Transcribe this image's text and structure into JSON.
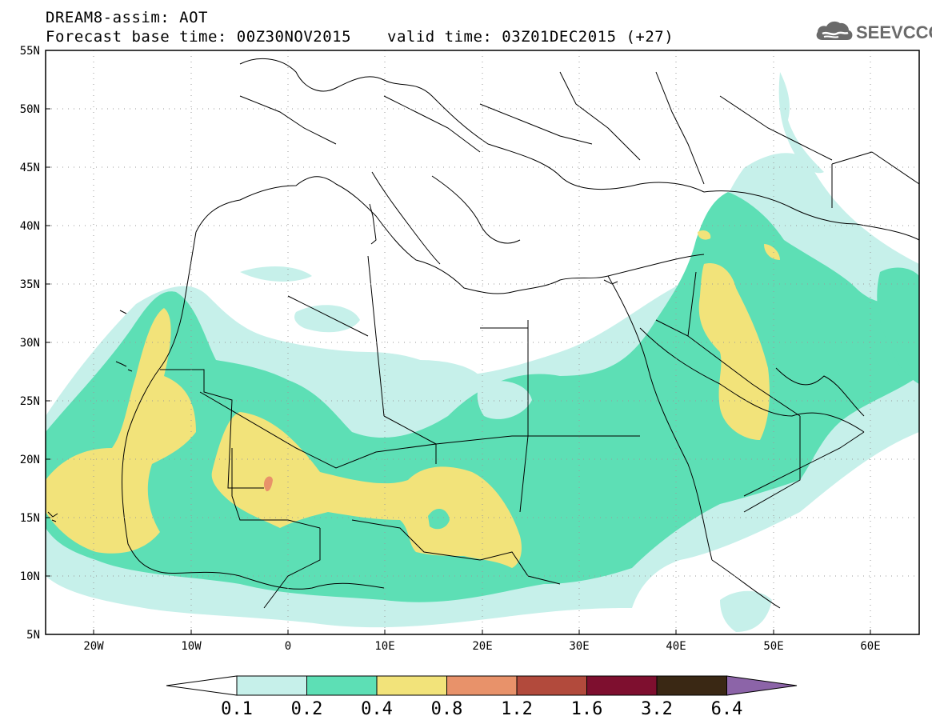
{
  "header": {
    "title_line1": "DREAM8-assim: AOT",
    "title_line2": "Forecast base time: 00Z30NOV2015",
    "valid_time": "valid time: 03Z01DEC2015 (+27)"
  },
  "logo": {
    "text": "SEEVCCC",
    "icon": "cloud-icon"
  },
  "map": {
    "lat_labels": [
      "55N",
      "50N",
      "45N",
      "40N",
      "35N",
      "30N",
      "25N",
      "20N",
      "15N",
      "10N",
      "5N"
    ],
    "lon_labels": [
      "20W",
      "10W",
      "0",
      "10E",
      "20E",
      "30E",
      "40E",
      "50E",
      "60E"
    ],
    "lat_range": [
      5,
      55
    ],
    "lon_range": [
      -25,
      65
    ]
  },
  "legend": {
    "labels": [
      "0.1",
      "0.2",
      "0.4",
      "0.8",
      "1.2",
      "1.6",
      "3.2",
      "6.4"
    ],
    "colors": [
      "#c6f0ea",
      "#5ddfb5",
      "#f2e37a",
      "#e8926a",
      "#b24a3c",
      "#7e0f2f",
      "#3a2814",
      "#8c64a8"
    ],
    "underflow_color": "#ffffff"
  },
  "colors": {
    "c01": "#c6f0ea",
    "c02": "#5ddfb5",
    "c04": "#f2e37a",
    "c08": "#e8926a"
  }
}
